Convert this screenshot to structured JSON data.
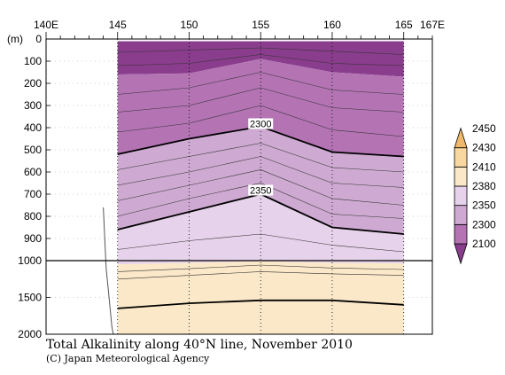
{
  "chart_data": {
    "type": "heatmap",
    "title": "Total Alkalinity along 40°N line, November 2010",
    "credit": "(C) Japan Meteorological Agency",
    "x_axis": {
      "range": [
        140,
        167
      ],
      "ticks": [
        {
          "value": 140,
          "label": "140E"
        },
        {
          "value": 145,
          "label": "145"
        },
        {
          "value": 150,
          "label": "150"
        },
        {
          "value": 155,
          "label": "155"
        },
        {
          "value": 160,
          "label": "160"
        },
        {
          "value": 165,
          "label": "165"
        },
        {
          "value": 167,
          "label": "167E"
        }
      ]
    },
    "y_axis": {
      "unit_label": "(m)",
      "upper_range": [
        0,
        1000
      ],
      "lower_range": [
        1000,
        2000
      ],
      "ticks": [
        {
          "value": 0,
          "label": "0"
        },
        {
          "value": 100,
          "label": "100"
        },
        {
          "value": 200,
          "label": "200"
        },
        {
          "value": 300,
          "label": "300"
        },
        {
          "value": 400,
          "label": "400"
        },
        {
          "value": 500,
          "label": "500"
        },
        {
          "value": 600,
          "label": "600"
        },
        {
          "value": 700,
          "label": "700"
        },
        {
          "value": 800,
          "label": "800"
        },
        {
          "value": 900,
          "label": "900"
        },
        {
          "value": 1000,
          "label": "1000"
        },
        {
          "value": 1500,
          "label": "1500"
        },
        {
          "value": 2000,
          "label": "2000"
        }
      ]
    },
    "section_longitudes": [
      145,
      150,
      155,
      160,
      165
    ],
    "colorbar": {
      "levels": [
        2100,
        2300,
        2350,
        2380,
        2410,
        2430,
        2450
      ],
      "labels": [
        "2100",
        "2300",
        "2350",
        "2380",
        "2410",
        "2430",
        "2450"
      ],
      "colors": [
        "#8a3d8c",
        "#b474b4",
        "#ceaad2",
        "#e6d2ea",
        "#fbe8c8",
        "#f8d8a0",
        "#f0b86a"
      ]
    },
    "bands": [
      {
        "value_class": 2100,
        "color": "#8a3d8c",
        "depth_at_lon": [
          [
            145,
            160
          ],
          [
            150,
            155
          ],
          [
            155,
            90
          ],
          [
            160,
            150
          ],
          [
            165,
            170
          ]
        ]
      },
      {
        "value_class": 2300,
        "color": "#b474b4",
        "depth_at_lon": [
          [
            145,
            520
          ],
          [
            150,
            450
          ],
          [
            155,
            400
          ],
          [
            160,
            510
          ],
          [
            165,
            530
          ]
        ]
      },
      {
        "value_class": 2350,
        "color": "#ceaad2",
        "depth_at_lon": [
          [
            145,
            860
          ],
          [
            150,
            780
          ],
          [
            155,
            700
          ],
          [
            160,
            850
          ],
          [
            165,
            880
          ]
        ]
      },
      {
        "value_class": 2380,
        "color": "#e6d2ea",
        "depth_at_lon": [
          [
            145,
            1050
          ],
          [
            150,
            1030
          ],
          [
            155,
            1010
          ],
          [
            160,
            1030
          ],
          [
            165,
            1040
          ]
        ]
      },
      {
        "value_class": 2410,
        "color": "#fbe8c8",
        "depth_at_lon": [
          [
            145,
            2000
          ],
          [
            150,
            2000
          ],
          [
            155,
            2000
          ],
          [
            160,
            2000
          ],
          [
            165,
            2000
          ]
        ]
      }
    ],
    "contour_labels": [
      {
        "text": "2300",
        "lon": 155,
        "depth": 390
      },
      {
        "text": "2350",
        "lon": 155,
        "depth": 690
      }
    ],
    "bold_contours": [
      {
        "value": 2300,
        "points": [
          [
            145,
            520
          ],
          [
            150,
            450
          ],
          [
            155,
            395
          ],
          [
            160,
            510
          ],
          [
            165,
            530
          ]
        ]
      },
      {
        "value": 2350,
        "points": [
          [
            145,
            860
          ],
          [
            150,
            780
          ],
          [
            155,
            700
          ],
          [
            160,
            850
          ],
          [
            165,
            880
          ]
        ]
      },
      {
        "value": 2410,
        "points": [
          [
            145,
            1650
          ],
          [
            150,
            1580
          ],
          [
            155,
            1540
          ],
          [
            160,
            1540
          ],
          [
            165,
            1600
          ]
        ]
      }
    ],
    "thin_contours": [
      [
        [
          145,
          60
        ],
        [
          150,
          50
        ],
        [
          155,
          40
        ],
        [
          160,
          55
        ],
        [
          165,
          70
        ]
      ],
      [
        [
          145,
          120
        ],
        [
          150,
          110
        ],
        [
          155,
          70
        ],
        [
          160,
          110
        ],
        [
          165,
          120
        ]
      ],
      [
        [
          145,
          250
        ],
        [
          150,
          220
        ],
        [
          155,
          150
        ],
        [
          160,
          230
        ],
        [
          165,
          250
        ]
      ],
      [
        [
          145,
          330
        ],
        [
          150,
          300
        ],
        [
          155,
          220
        ],
        [
          160,
          310
        ],
        [
          165,
          330
        ]
      ],
      [
        [
          145,
          420
        ],
        [
          150,
          380
        ],
        [
          155,
          300
        ],
        [
          160,
          410
        ],
        [
          165,
          440
        ]
      ],
      [
        [
          145,
          590
        ],
        [
          150,
          530
        ],
        [
          155,
          470
        ],
        [
          160,
          580
        ],
        [
          165,
          600
        ]
      ],
      [
        [
          145,
          660
        ],
        [
          150,
          600
        ],
        [
          155,
          530
        ],
        [
          160,
          650
        ],
        [
          165,
          670
        ]
      ],
      [
        [
          145,
          730
        ],
        [
          150,
          660
        ],
        [
          155,
          590
        ],
        [
          160,
          720
        ],
        [
          165,
          750
        ]
      ],
      [
        [
          145,
          800
        ],
        [
          150,
          720
        ],
        [
          155,
          650
        ],
        [
          160,
          790
        ],
        [
          165,
          810
        ]
      ],
      [
        [
          145,
          950
        ],
        [
          150,
          910
        ],
        [
          155,
          880
        ],
        [
          160,
          930
        ],
        [
          165,
          960
        ]
      ],
      [
        [
          145,
          1150
        ],
        [
          150,
          1110
        ],
        [
          155,
          1060
        ],
        [
          160,
          1100
        ],
        [
          165,
          1120
        ]
      ],
      [
        [
          145,
          1250
        ],
        [
          150,
          1200
        ],
        [
          155,
          1150
        ],
        [
          160,
          1180
        ],
        [
          165,
          1200
        ]
      ]
    ],
    "bottom_profile": [
      [
        144.0,
        760
      ],
      [
        144.2,
        1100
      ],
      [
        144.4,
        1500
      ],
      [
        144.6,
        1900
      ],
      [
        144.7,
        2000
      ]
    ]
  }
}
